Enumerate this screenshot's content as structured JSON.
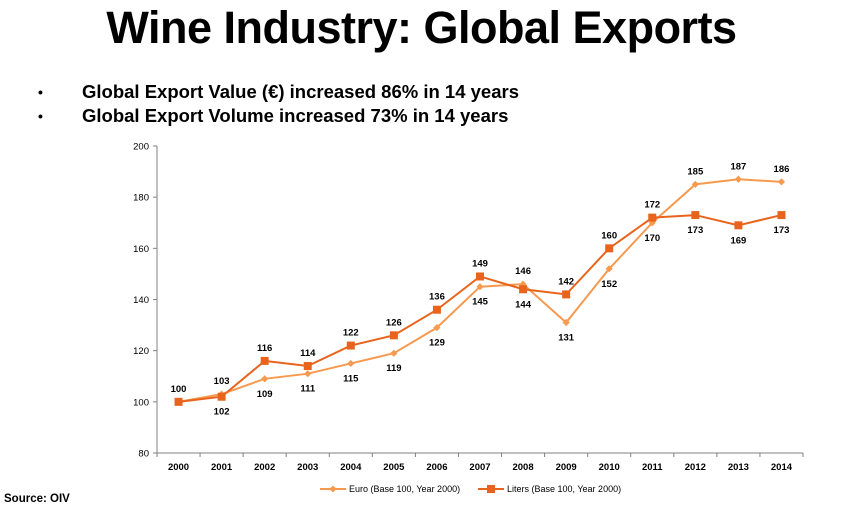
{
  "slide": {
    "title": "Wine Industry: Global Exports",
    "bullets": [
      "Global Export Value (€) increased 86% in 14 years",
      "Global Export Volume increased 73% in 14 years"
    ],
    "source": "Source: OIV"
  },
  "chart_data": {
    "type": "line",
    "title": "",
    "xlabel": "",
    "ylabel": "",
    "categories": [
      "2000",
      "2001",
      "2002",
      "2003",
      "2004",
      "2005",
      "2006",
      "2007",
      "2008",
      "2009",
      "2010",
      "2011",
      "2012",
      "2013",
      "2014"
    ],
    "ylim": [
      80,
      200
    ],
    "yticks": [
      80,
      100,
      120,
      140,
      160,
      180,
      200
    ],
    "grid": false,
    "legend_position": "bottom",
    "series": [
      {
        "name": "Euro (Base 100, Year 2000)",
        "color": "#F79A50",
        "marker": "diamond",
        "values": [
          100,
          103,
          109,
          111,
          115,
          119,
          129,
          145,
          146,
          131,
          152,
          170,
          185,
          187,
          186
        ],
        "labels": [
          "",
          "",
          "109",
          "111",
          "115",
          "119",
          "129",
          "145",
          "146",
          "131",
          "152",
          "170",
          "185",
          "187",
          "186"
        ]
      },
      {
        "name": "Liters (Base 100, Year 2000)",
        "color": "#E8641C",
        "marker": "square",
        "values": [
          100,
          102,
          116,
          114,
          122,
          126,
          136,
          149,
          144,
          142,
          160,
          172,
          173,
          169,
          173
        ],
        "labels": [
          "100",
          "102",
          "116",
          "114",
          "122",
          "126",
          "136",
          "149",
          "144",
          "142",
          "160",
          "172",
          "173",
          "169",
          "173"
        ]
      }
    ],
    "extra_labels": [
      "103"
    ]
  }
}
